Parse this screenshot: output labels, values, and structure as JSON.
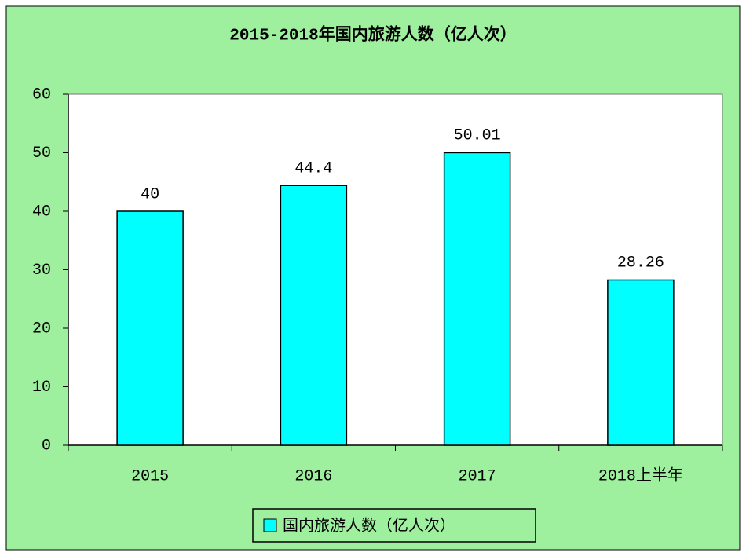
{
  "chart_data": {
    "type": "bar",
    "title": "2015-2018年国内旅游人数（亿人次）",
    "categories": [
      "2015",
      "2016",
      "2017",
      "2018上半年"
    ],
    "series": [
      {
        "name": "国内旅游人数（亿人次）",
        "color": "#00ffff",
        "values": [
          40,
          44.4,
          50.01,
          28.26
        ]
      }
    ],
    "ylim": [
      0,
      60
    ],
    "yticks": [
      0,
      10,
      20,
      30,
      40,
      50,
      60
    ],
    "grid": false,
    "legend": "bottom"
  }
}
